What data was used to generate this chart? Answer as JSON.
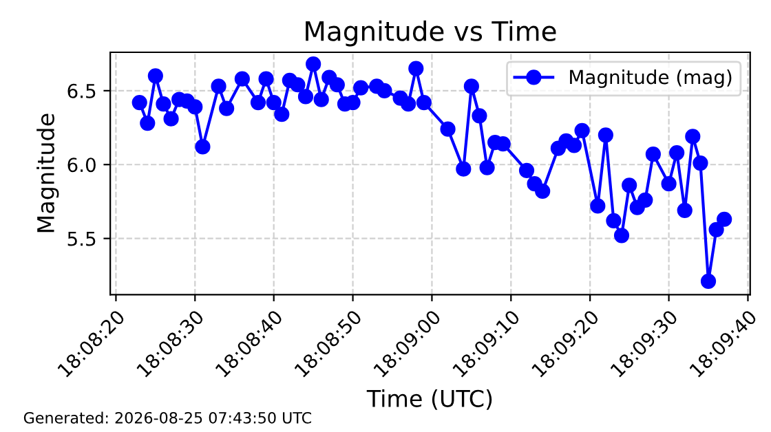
{
  "chart_data": {
    "type": "line",
    "title": "Magnitude vs Time",
    "xlabel": "Time (UTC)",
    "ylabel": "Magnitude",
    "annotations": [
      "Generated: 2026-08-25 07:43:50 UTC"
    ],
    "x": [
      18.13972,
      18.14,
      18.14028,
      18.14056,
      18.14083,
      18.14111,
      18.14139,
      18.14167,
      18.14194,
      18.1425,
      18.14278,
      18.14333,
      18.14389,
      18.14417,
      18.14444,
      18.14472,
      18.145,
      18.14528,
      18.14556,
      18.14583,
      18.14611,
      18.14639,
      18.14667,
      18.14694,
      18.14722,
      18.1475,
      18.14806,
      18.14833,
      18.14889,
      18.14917,
      18.14944,
      18.14972,
      18.15056,
      18.15111,
      18.15139,
      18.15167,
      18.15194,
      18.15222,
      18.1525,
      18.15333,
      18.15361,
      18.15389,
      18.15444,
      18.15472,
      18.155,
      18.15528,
      18.15583,
      18.15611,
      18.15639,
      18.15667,
      18.15694,
      18.15722,
      18.1575,
      18.15778,
      18.15833,
      18.15861,
      18.15889,
      18.15917,
      18.15944,
      18.15972,
      18.16,
      18.16028
    ],
    "series": [
      {
        "name": "Magnitude (mag)",
        "color": "#0000ff",
        "values": [
          6.42,
          6.28,
          6.6,
          6.41,
          6.31,
          6.44,
          6.43,
          6.39,
          6.12,
          6.53,
          6.38,
          6.58,
          6.42,
          6.58,
          6.42,
          6.34,
          6.57,
          6.54,
          6.46,
          6.68,
          6.44,
          6.59,
          6.54,
          6.41,
          6.42,
          6.52,
          6.53,
          6.5,
          6.45,
          6.41,
          6.65,
          6.42,
          6.24,
          5.97,
          6.53,
          6.33,
          5.98,
          6.15,
          6.14,
          5.96,
          5.87,
          5.82,
          6.11,
          6.16,
          6.13,
          6.23,
          5.72,
          6.2,
          5.62,
          5.52,
          5.86,
          5.71,
          5.76,
          6.07,
          5.87,
          6.08,
          5.69,
          6.19,
          6.01,
          5.21,
          5.56,
          5.63
        ]
      }
    ],
    "xlim": [
      18.13869,
      18.16119
    ],
    "xticks": [
      {
        "value": 18.13889,
        "label": "18:08:20"
      },
      {
        "value": 18.14167,
        "label": "18:08:30"
      },
      {
        "value": 18.14444,
        "label": "18:08:40"
      },
      {
        "value": 18.14722,
        "label": "18:08:50"
      },
      {
        "value": 18.15,
        "label": "18:09:00"
      },
      {
        "value": 18.15278,
        "label": "18:09:10"
      },
      {
        "value": 18.15556,
        "label": "18:09:20"
      },
      {
        "value": 18.15833,
        "label": "18:09:30"
      },
      {
        "value": 18.16111,
        "label": "18:09:40"
      }
    ],
    "ylim": [
      5.12,
      6.76
    ],
    "yticks": [
      5.5,
      {
        "value": 6.0,
        "label": "6.0"
      },
      6.5
    ],
    "grid": true,
    "legend": "top right",
    "marker": "circle",
    "line_style": "solid"
  }
}
